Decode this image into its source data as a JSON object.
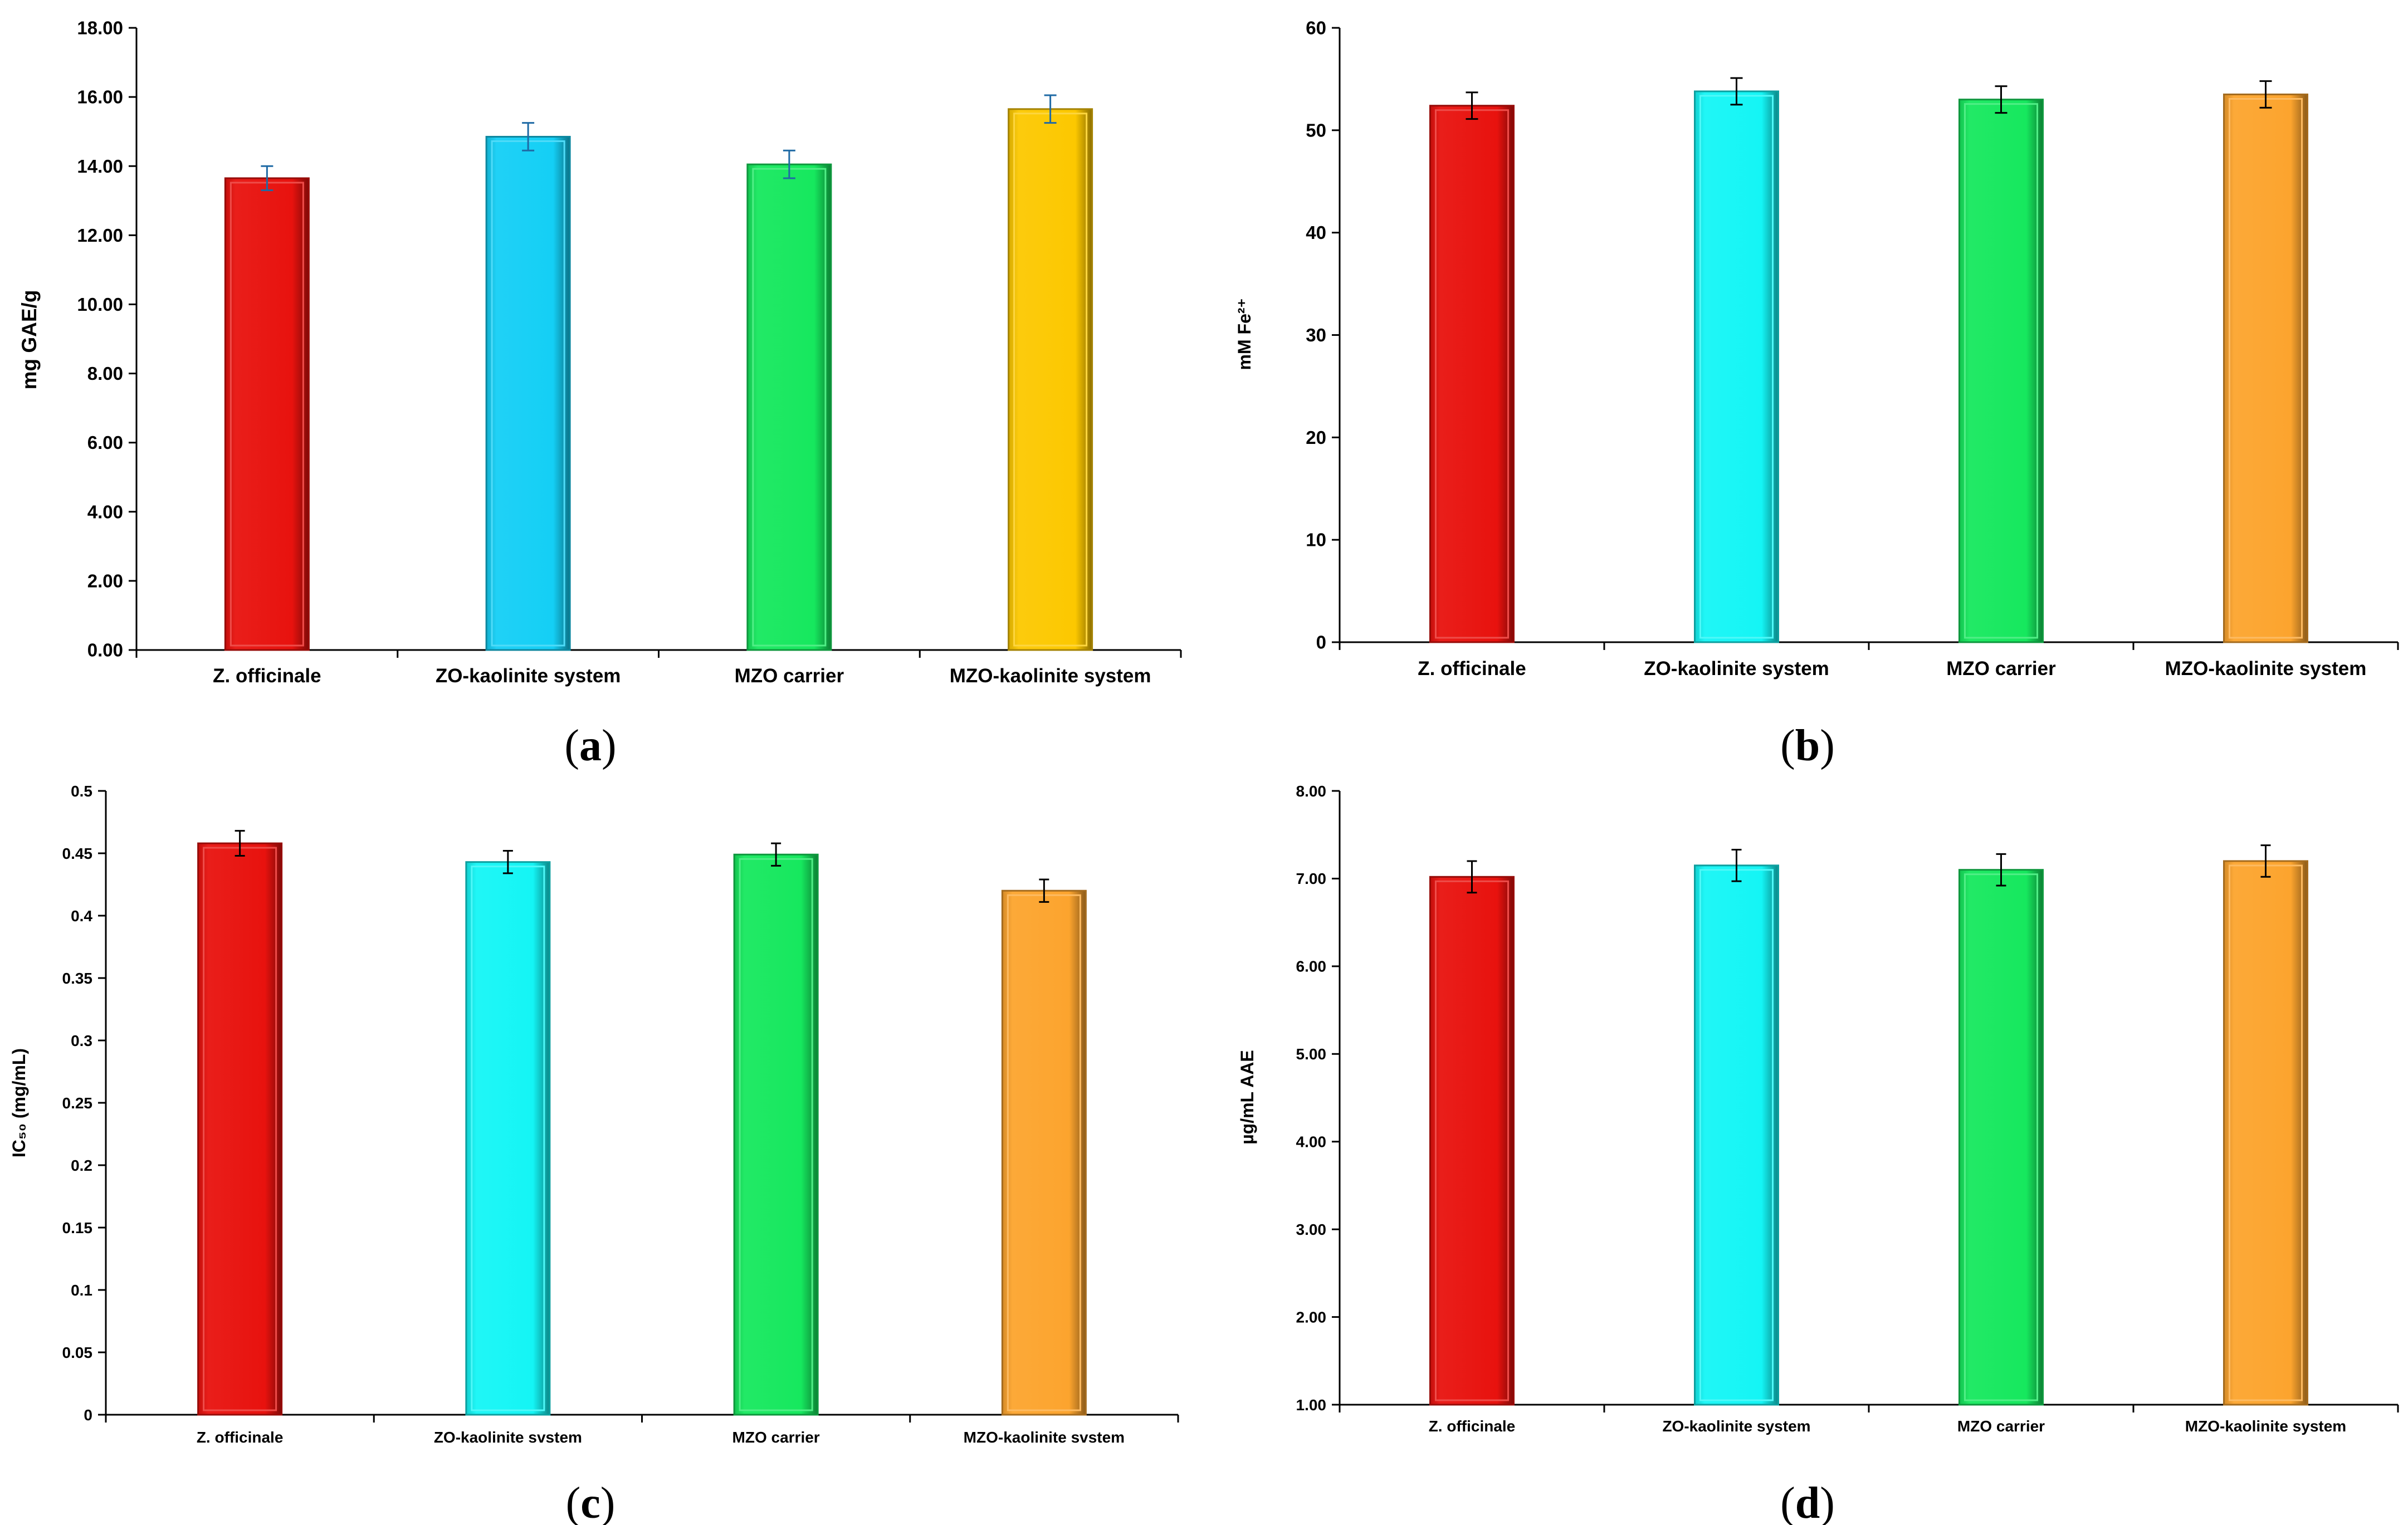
{
  "chart_data": [
    {
      "type": "bar",
      "panel_label": "a",
      "ylabel": "mg GAE/g",
      "ylim": [
        0,
        18
      ],
      "yticks": [
        "0.00",
        "2.00",
        "4.00",
        "6.00",
        "8.00",
        "10.00",
        "12.00",
        "14.00",
        "16.00",
        "18.00"
      ],
      "categories": [
        "Z. officinale",
        "ZO-kaolinite system",
        "MZO carrier",
        "MZO-kaolinite system"
      ],
      "values": [
        13.65,
        14.85,
        14.05,
        15.65
      ],
      "errors": [
        0.35,
        0.4,
        0.4,
        0.4
      ],
      "colors": [
        "#e8120e",
        "#14cff5",
        "#16e85e",
        "#fcc800"
      ],
      "error_color": "#1f6aa5"
    },
    {
      "type": "bar",
      "panel_label": "b",
      "ylabel": "mM Fe²⁺",
      "ylim": [
        0,
        60
      ],
      "yticks": [
        "0",
        "10",
        "20",
        "30",
        "40",
        "50",
        "60"
      ],
      "categories": [
        "Z. officinale",
        "ZO-kaolinite system",
        "MZO carrier",
        "MZO-kaolinite system"
      ],
      "values": [
        52.4,
        53.8,
        53.0,
        53.5
      ],
      "errors": [
        1.3,
        1.3,
        1.3,
        1.3
      ],
      "colors": [
        "#e8120e",
        "#14f5f5",
        "#16e85e",
        "#fca42e"
      ],
      "error_color": "#000000"
    },
    {
      "type": "bar",
      "panel_label": "c",
      "ylabel": "IC₅₀ (mg/mL)",
      "ylim": [
        0,
        0.5
      ],
      "yticks": [
        "0",
        "0.05",
        "0.1",
        "0.15",
        "0.2",
        "0.25",
        "0.3",
        "0.35",
        "0.4",
        "0.45",
        "0.5"
      ],
      "categories": [
        "Z. officinale",
        "ZO-kaolinite svstem",
        "MZO carrier",
        "MZO-kaolinite svstem"
      ],
      "values": [
        0.458,
        0.443,
        0.449,
        0.42
      ],
      "errors": [
        0.01,
        0.009,
        0.009,
        0.009
      ],
      "colors": [
        "#e8120e",
        "#14f5f5",
        "#16e85e",
        "#fca42e"
      ],
      "error_color": "#000000"
    },
    {
      "type": "bar",
      "panel_label": "d",
      "ylabel": "µg/mL AAE",
      "ylim": [
        1,
        8
      ],
      "yticks": [
        "1.00",
        "2.00",
        "3.00",
        "4.00",
        "5.00",
        "6.00",
        "7.00",
        "8.00"
      ],
      "categories": [
        "Z. officinale",
        "ZO-kaolinite system",
        "MZO carrier",
        "MZO-kaolinite system"
      ],
      "values": [
        7.02,
        7.15,
        7.1,
        7.2
      ],
      "errors": [
        0.18,
        0.18,
        0.18,
        0.18
      ],
      "colors": [
        "#e8120e",
        "#14f5f5",
        "#16e85e",
        "#fca42e"
      ],
      "error_color": "#000000"
    }
  ]
}
